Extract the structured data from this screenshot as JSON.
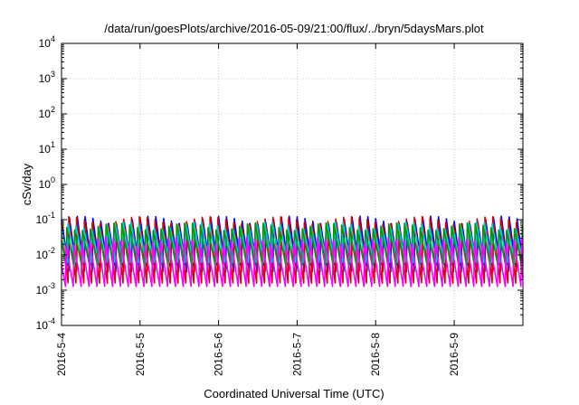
{
  "chart_data": {
    "type": "line",
    "title": "/data/run/goesPlots/archive/2016-05-09/21:00/flux/../bryn/5daysMars.plot",
    "xlabel": "Coordinated Universal Time (UTC)",
    "ylabel": "cSv/day",
    "y_scale": "log",
    "ylim": [
      0.0001,
      10000
    ],
    "y_ticks": [
      {
        "base": "10",
        "exp": "-4"
      },
      {
        "base": "10",
        "exp": "-3"
      },
      {
        "base": "10",
        "exp": "-2"
      },
      {
        "base": "10",
        "exp": "-1"
      },
      {
        "base": "10",
        "exp": "0"
      },
      {
        "base": "10",
        "exp": "1"
      },
      {
        "base": "10",
        "exp": "2"
      },
      {
        "base": "10",
        "exp": "3"
      },
      {
        "base": "10",
        "exp": "4"
      }
    ],
    "xlim": [
      "2016-05-04 00:00",
      "2016-05-09 21:00"
    ],
    "x_ticks": [
      "2016-5-4",
      "2016-5-5",
      "2016-5-6",
      "2016-5-7",
      "2016-5-8",
      "2016-5-9"
    ],
    "grid": true,
    "sawtooth_period_hours": 2.4,
    "series": [
      {
        "color": "#0000ff",
        "peak": 0.1,
        "trough": 0.0025
      },
      {
        "color": "#dd0000",
        "peak": 0.115,
        "trough": 0.0013
      },
      {
        "color": "#00ccdd",
        "peak": 0.085,
        "trough": 0.006
      },
      {
        "color": "#009a00",
        "peak": 0.07,
        "trough": 0.004
      },
      {
        "color": "#ff00ff",
        "peak": 0.03,
        "trough": 0.0012
      }
    ]
  }
}
